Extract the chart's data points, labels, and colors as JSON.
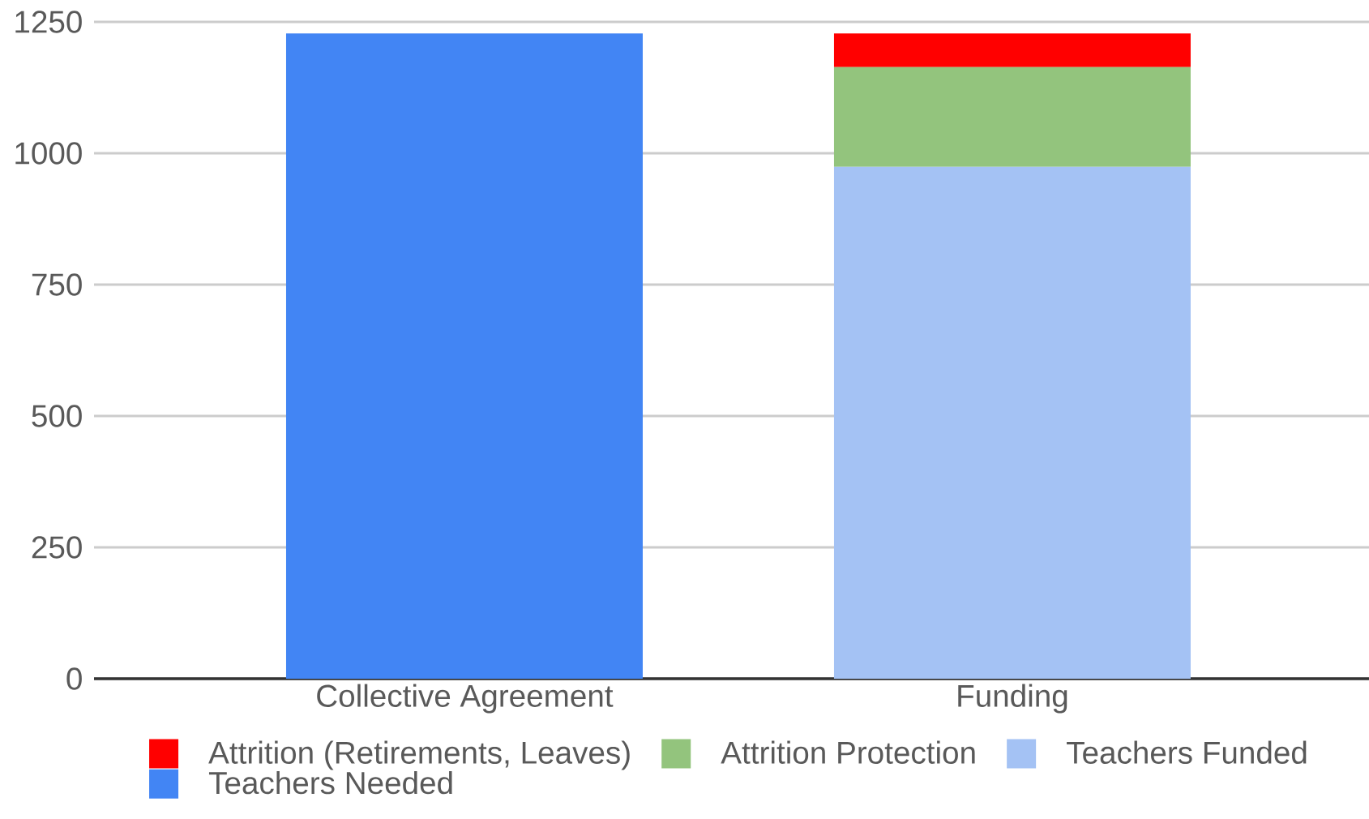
{
  "chart_data": {
    "type": "bar",
    "stacked": true,
    "categories": [
      "Collective Agreement",
      "Funding"
    ],
    "series": [
      {
        "name": "Teachers Needed",
        "color": "#4285f4",
        "values": [
          1228,
          null
        ]
      },
      {
        "name": "Teachers Funded",
        "color": "#a4c2f4",
        "values": [
          null,
          974
        ]
      },
      {
        "name": "Attrition Protection",
        "color": "#93c47d",
        "values": [
          null,
          190
        ]
      },
      {
        "name": "Attrition (Retirements, Leaves)",
        "color": "#ff0000",
        "values": [
          null,
          64
        ]
      }
    ],
    "ylim": [
      0,
      1250
    ],
    "yticks": [
      0,
      250,
      500,
      750,
      1000,
      1250
    ],
    "grid": "y",
    "legend": "bottom"
  }
}
